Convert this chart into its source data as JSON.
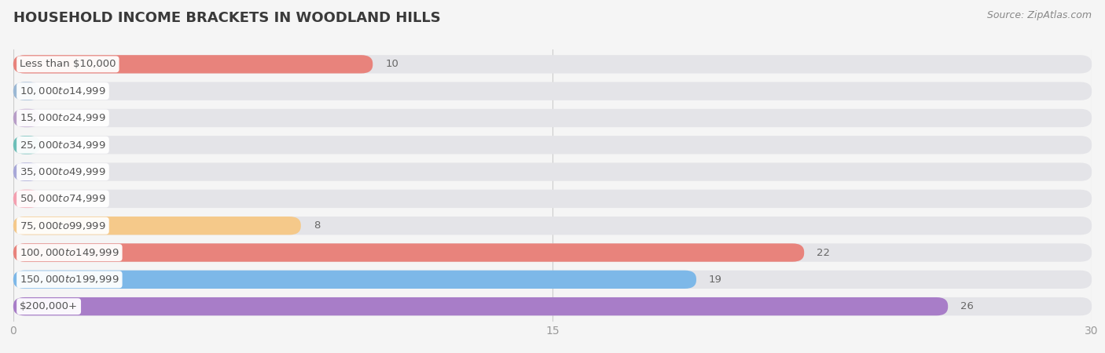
{
  "title": "HOUSEHOLD INCOME BRACKETS IN WOODLAND HILLS",
  "source": "Source: ZipAtlas.com",
  "categories": [
    "Less than $10,000",
    "$10,000 to $14,999",
    "$15,000 to $24,999",
    "$25,000 to $34,999",
    "$35,000 to $49,999",
    "$50,000 to $74,999",
    "$75,000 to $99,999",
    "$100,000 to $149,999",
    "$150,000 to $199,999",
    "$200,000+"
  ],
  "values": [
    10,
    0,
    0,
    0,
    0,
    0,
    8,
    22,
    19,
    26
  ],
  "bar_colors": [
    "#E8837C",
    "#9BB8D4",
    "#B89EC8",
    "#6DBFB8",
    "#A8A8D8",
    "#F4A0B0",
    "#F5C98A",
    "#E8837C",
    "#7DB8E8",
    "#A87DC8"
  ],
  "background_color": "#f5f5f5",
  "bar_bg_color": "#e4e4e8",
  "xlim": [
    0,
    30
  ],
  "xticks": [
    0,
    15,
    30
  ],
  "title_fontsize": 13,
  "label_fontsize": 9.5,
  "value_fontsize": 9.5,
  "source_fontsize": 9
}
